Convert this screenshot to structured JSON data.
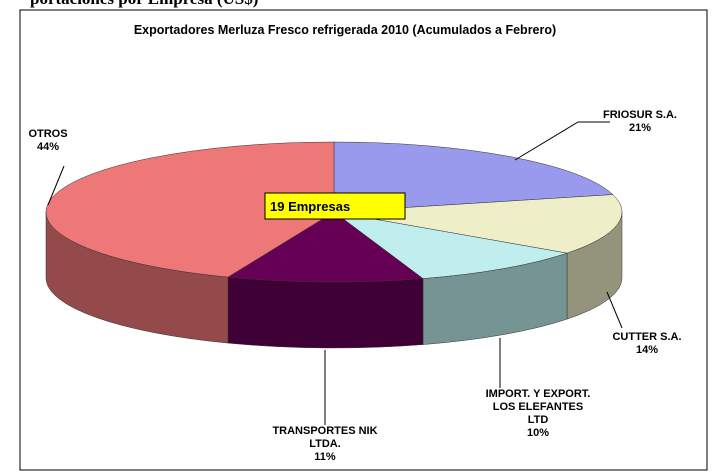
{
  "page_heading": "portaciones por Empresa (US$)",
  "chart_data": {
    "type": "pie3d",
    "title": "Exportadores Merluza Fresco refrigerada 2010 (Acumulados a Febrero)",
    "annotation": "19 Empresas",
    "categories": [
      "FRIOSUR S.A.",
      "CUTTER S.A.",
      "IMPORT. Y EXPORT.\nLOS ELEFANTES\nLTD",
      "TRANSPORTES NIK\nLTDA.",
      "OTROS"
    ],
    "values": [
      21,
      14,
      10,
      11,
      44
    ],
    "value_labels": [
      "21%",
      "14%",
      "10%",
      "11%",
      "44%"
    ],
    "colors": [
      "#9999ee",
      "#eeeec8",
      "#c0eeee",
      "#660055",
      "#ee7777"
    ]
  }
}
